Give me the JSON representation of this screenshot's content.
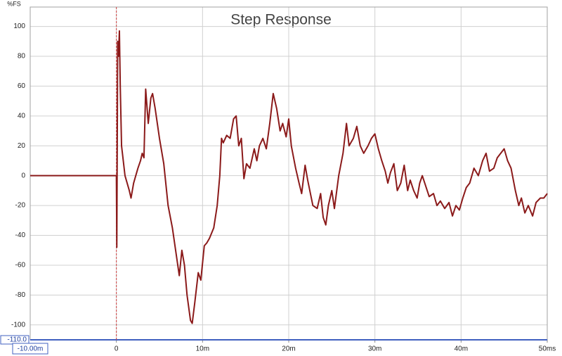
{
  "chart_data": {
    "type": "line",
    "title": "Step Response",
    "y_label": "%FS",
    "xlim": [
      -10,
      50
    ],
    "ylim": [
      -110,
      113
    ],
    "xticks": [
      {
        "value": -10,
        "label": "-10.00m"
      },
      0,
      {
        "value": 10,
        "label": "10m"
      },
      {
        "value": 20,
        "label": "20m"
      },
      {
        "value": 30,
        "label": "30m"
      },
      {
        "value": 40,
        "label": "40m"
      },
      {
        "value": 50,
        "label": "50ms"
      }
    ],
    "yticks": [
      {
        "value": -110,
        "label": "-110.0"
      },
      -100,
      -80,
      -60,
      -40,
      -20,
      0,
      20,
      40,
      60,
      80,
      100
    ],
    "grid": true,
    "cursor_x": 0,
    "cursor_color": "#d04040",
    "series": [
      {
        "name": "Step Response",
        "color": "#8b1a1a",
        "x": [
          -10,
          -0.1,
          0,
          0.05,
          0.15,
          0.25,
          0.35,
          0.45,
          0.6,
          1.0,
          1.5,
          1.7,
          2.0,
          2.5,
          2.8,
          3.0,
          3.2,
          3.4,
          3.7,
          4.0,
          4.2,
          4.5,
          5.0,
          5.5,
          6.0,
          6.5,
          7.0,
          7.3,
          7.6,
          7.9,
          8.2,
          8.6,
          8.8,
          9.1,
          9.5,
          9.8,
          10.2,
          10.5,
          10.8,
          11.3,
          11.7,
          12.0,
          12.2,
          12.4,
          12.8,
          13.2,
          13.6,
          13.9,
          14.2,
          14.5,
          14.8,
          15.1,
          15.5,
          16.0,
          16.3,
          16.6,
          17.0,
          17.4,
          17.8,
          18.2,
          18.6,
          19.0,
          19.3,
          19.7,
          20.0,
          20.3,
          20.8,
          21.2,
          21.5,
          21.9,
          22.2,
          22.8,
          23.3,
          23.7,
          24.0,
          24.3,
          24.6,
          25.0,
          25.3,
          25.8,
          26.3,
          26.7,
          27.0,
          27.5,
          27.9,
          28.3,
          28.7,
          29.2,
          29.6,
          30.0,
          30.4,
          30.8,
          31.2,
          31.5,
          31.8,
          32.2,
          32.6,
          33.0,
          33.4,
          33.8,
          34.1,
          34.5,
          34.9,
          35.2,
          35.5,
          35.9,
          36.3,
          36.8,
          37.2,
          37.6,
          38.1,
          38.6,
          39.0,
          39.4,
          39.8,
          40.2,
          40.6,
          41.0,
          41.5,
          42.0,
          42.5,
          42.9,
          43.3,
          43.8,
          44.2,
          44.6,
          45.0,
          45.4,
          45.8,
          46.3,
          46.7,
          47.0,
          47.4,
          47.8,
          48.3,
          48.7,
          49.2,
          49.6,
          50.0
        ],
        "values": [
          0,
          0,
          0,
          -48,
          90,
          80,
          97,
          60,
          20,
          0,
          -10,
          -15,
          -5,
          5,
          10,
          15,
          12,
          58,
          35,
          52,
          55,
          45,
          25,
          8,
          -20,
          -35,
          -55,
          -67,
          -50,
          -60,
          -80,
          -97,
          -99,
          -85,
          -65,
          -70,
          -47,
          -45,
          -42,
          -35,
          -20,
          0,
          25,
          22,
          27,
          25,
          38,
          40,
          20,
          25,
          -2,
          8,
          5,
          18,
          10,
          20,
          25,
          18,
          35,
          55,
          45,
          30,
          35,
          26,
          38,
          20,
          5,
          -5,
          -12,
          7,
          -3,
          -20,
          -22,
          -12,
          -28,
          -33,
          -20,
          -10,
          -22,
          0,
          15,
          35,
          20,
          25,
          33,
          20,
          15,
          20,
          25,
          28,
          18,
          10,
          3,
          -5,
          2,
          8,
          -10,
          -5,
          7,
          -10,
          -3,
          -10,
          -15,
          -5,
          0,
          -7,
          -14,
          -12,
          -20,
          -17,
          -22,
          -18,
          -27,
          -20,
          -23,
          -15,
          -8,
          -5,
          5,
          0,
          10,
          15,
          3,
          5,
          12,
          15,
          18,
          10,
          5,
          -10,
          -20,
          -15,
          -25,
          -20,
          -27,
          -18,
          -15,
          -15,
          -12
        ]
      }
    ]
  }
}
